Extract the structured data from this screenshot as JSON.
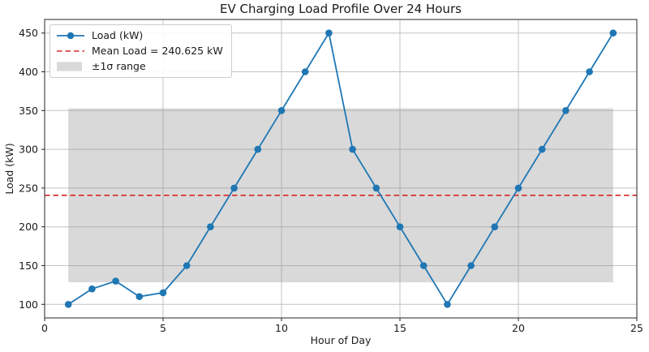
{
  "window": {
    "title": "EV Charging Load Profile Over 24 Hours"
  },
  "chart_data": {
    "type": "line",
    "title": "EV Charging Load Profile Over 24 Hours",
    "xlabel": "Hour of Day",
    "ylabel": "Load (kW)",
    "x": [
      1,
      2,
      3,
      4,
      5,
      6,
      7,
      8,
      9,
      10,
      11,
      12,
      13,
      14,
      15,
      16,
      17,
      18,
      19,
      20,
      21,
      22,
      23,
      24
    ],
    "series": [
      {
        "name": "Load (kW)",
        "color": "#1f77b4",
        "marker": "circle",
        "values": [
          100,
          120,
          130,
          110,
          115,
          150,
          200,
          250,
          300,
          350,
          400,
          450,
          300,
          250,
          200,
          150,
          100,
          150,
          200,
          250,
          300,
          350,
          400,
          450
        ]
      }
    ],
    "mean_line": {
      "label": "Mean Load = 240.625 kW",
      "value": 240.625,
      "color": "#d62728",
      "style": "dashed"
    },
    "band": {
      "label": "±1σ range",
      "low": 128.44,
      "high": 352.81,
      "x_start": 1,
      "x_end": 24,
      "color": "#808080",
      "opacity": 0.3
    },
    "xlim": [
      0,
      25
    ],
    "ylim": [
      82.5,
      467.5
    ],
    "xticks": [
      0,
      5,
      10,
      15,
      20,
      25
    ],
    "yticks": [
      100,
      150,
      200,
      250,
      300,
      350,
      400,
      450
    ],
    "grid": true,
    "legend_position": "upper-left",
    "grid_color": "#c3c3c3",
    "axis_color": "#262626"
  }
}
